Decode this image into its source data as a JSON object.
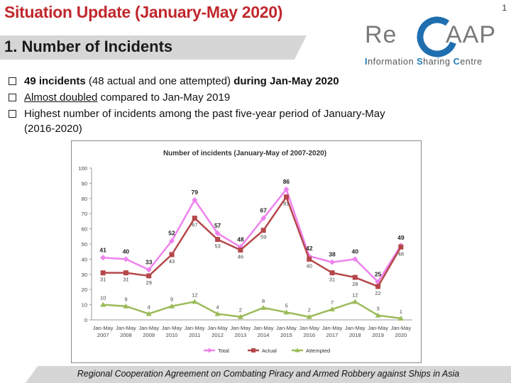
{
  "header": {
    "title": "Situation Update (January-May 2020)",
    "slide_number": "1",
    "section": "1. Number of Incidents"
  },
  "logo": {
    "word_re": "Re",
    "word_aap": "AAP",
    "sub_i": "I",
    "sub_nformation": "nformation ",
    "sub_s": "S",
    "sub_haring": "haring ",
    "sub_c": "C",
    "sub_entre": "entre",
    "accent_color": "#1f7ab8",
    "ring_color": "#1f6fb0"
  },
  "bullets": {
    "b1_bold": "49 incidents",
    "b1_mid": " (48 actual and one attempted) ",
    "b1_bold2": "during Jan-May 2020",
    "b2_underline": "Almost doubled",
    "b2_rest": " compared to Jan-May 2019",
    "b3_line1": "Highest number of incidents among the past five-year period of January-May",
    "b3_line2": "(2016-2020)"
  },
  "chart_data": {
    "type": "line",
    "title": "Number of incidents (January-May of 2007-2020)",
    "categories": [
      "Jan-May 2007",
      "Jan-May 2008",
      "Jan-May 2009",
      "Jan-May 2010",
      "Jan-May 2011",
      "Jan-May 2012",
      "Jan-May 2013",
      "Jan-May 2014",
      "Jan-May 2015",
      "Jan-May 2016",
      "Jan-May 2017",
      "Jan-May 2018",
      "Jan-May 2019",
      "Jan-May 2020"
    ],
    "ylim": [
      0,
      100
    ],
    "yticks": [
      0,
      10,
      20,
      30,
      40,
      50,
      60,
      70,
      80,
      90,
      100
    ],
    "legend_position": "bottom",
    "series": [
      {
        "name": "Total",
        "color": "#ee82ee",
        "marker": "diamond",
        "values": [
          41,
          40,
          33,
          52,
          79,
          57,
          48,
          67,
          86,
          42,
          38,
          40,
          25,
          49
        ]
      },
      {
        "name": "Actual",
        "color": "#b5474a",
        "marker": "square",
        "values": [
          31,
          31,
          29,
          43,
          67,
          53,
          46,
          59,
          81,
          40,
          31,
          28,
          22,
          48
        ]
      },
      {
        "name": "Attempted",
        "color": "#9bbb59",
        "marker": "triangle",
        "values": [
          10,
          9,
          4,
          9,
          12,
          4,
          2,
          8,
          5,
          2,
          7,
          12,
          3,
          1
        ]
      }
    ]
  },
  "footer": {
    "text": "Regional Cooperation Agreement on Combating Piracy and Armed Robbery against Ships in Asia"
  }
}
